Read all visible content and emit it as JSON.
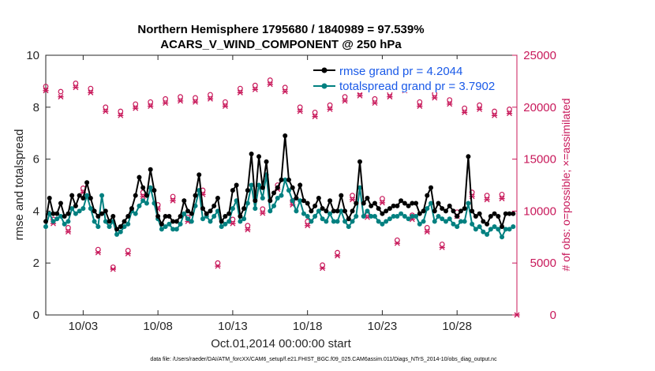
{
  "chart_data": {
    "type": "line",
    "title_line1": "Northern Hemisphere 1795680 / 1840989 = 97.539%",
    "title_line2": "ACARS_V_WIND_COMPONENT @ 250 hPa",
    "xlabel": "Oct.01,2014 00:00:00 start",
    "ylabel": "rmse and totalspread",
    "ylabel_right": "# of obs: o=possible; ×=assimilated",
    "footer": "data file: /Users/raeder/DAI/ATM_forcXX/CAM6_setup/f.e21.FHIST_BGC.f09_025.CAM6assim.011/Diags_NTrS_2014-10/obs_diag_output.nc",
    "x_range": [
      0.5,
      32.0
    ],
    "ylim": [
      0,
      10
    ],
    "ylim_right": [
      0,
      25000
    ],
    "xticks": [
      3,
      8,
      13,
      18,
      23,
      28
    ],
    "xtick_labels": [
      "10/03",
      "10/08",
      "10/13",
      "10/18",
      "10/23",
      "10/28"
    ],
    "yticks": [
      0,
      2,
      4,
      6,
      8,
      10
    ],
    "ytick_labels": [
      "0",
      "2",
      "4",
      "6",
      "8",
      "10"
    ],
    "yticks_right": [
      0,
      5000,
      10000,
      15000,
      20000,
      25000
    ],
    "ytick_labels_right": [
      "0",
      "5000",
      "10000",
      "15000",
      "20000",
      "25000"
    ],
    "legend_location": "top-right",
    "series": [
      {
        "name": "rmse grand pr = 4.2044",
        "color": "#000000",
        "x": [
          0.5,
          0.75,
          1.0,
          1.25,
          1.5,
          1.75,
          2.0,
          2.25,
          2.5,
          2.75,
          3.0,
          3.25,
          3.5,
          3.75,
          4.0,
          4.25,
          4.5,
          4.75,
          5.0,
          5.25,
          5.5,
          5.75,
          6.0,
          6.25,
          6.5,
          6.75,
          7.0,
          7.25,
          7.5,
          7.75,
          8.0,
          8.25,
          8.5,
          8.75,
          9.0,
          9.25,
          9.5,
          9.75,
          10.0,
          10.25,
          10.5,
          10.75,
          11.0,
          11.25,
          11.5,
          11.75,
          12.0,
          12.25,
          12.5,
          12.75,
          13.0,
          13.25,
          13.5,
          13.75,
          14.0,
          14.25,
          14.5,
          14.75,
          15.0,
          15.25,
          15.5,
          15.75,
          16.0,
          16.25,
          16.5,
          16.75,
          17.0,
          17.25,
          17.5,
          17.75,
          18.0,
          18.25,
          18.5,
          18.75,
          19.0,
          19.25,
          19.5,
          19.75,
          20.0,
          20.25,
          20.5,
          20.75,
          21.0,
          21.25,
          21.5,
          21.75,
          22.0,
          22.25,
          22.5,
          22.75,
          23.0,
          23.25,
          23.5,
          23.75,
          24.0,
          24.25,
          24.5,
          24.75,
          25.0,
          25.25,
          25.5,
          25.75,
          26.0,
          26.25,
          26.5,
          26.75,
          27.0,
          27.25,
          27.5,
          27.75,
          28.0,
          28.25,
          28.5,
          28.75,
          29.0,
          29.25,
          29.5,
          29.75,
          30.0,
          30.25,
          30.5,
          30.75,
          31.0,
          31.25,
          31.5,
          31.75
        ],
        "values": [
          3.6,
          4.5,
          3.9,
          3.9,
          4.3,
          3.8,
          3.9,
          4.6,
          4.2,
          4.6,
          4.5,
          5.1,
          4.5,
          4.0,
          3.8,
          3.9,
          4.0,
          3.6,
          3.8,
          3.3,
          3.4,
          3.6,
          3.8,
          4.1,
          4.6,
          5.3,
          4.9,
          4.6,
          5.6,
          4.8,
          3.8,
          3.5,
          3.8,
          3.8,
          3.6,
          3.6,
          3.8,
          4.4,
          4.0,
          3.9,
          4.6,
          5.4,
          4.1,
          3.9,
          4.0,
          4.2,
          4.5,
          3.6,
          3.8,
          3.9,
          4.8,
          5.0,
          3.8,
          4.1,
          4.8,
          6.2,
          4.4,
          6.1,
          4.9,
          5.9,
          4.4,
          4.7,
          4.9,
          5.2,
          6.9,
          5.2,
          4.9,
          4.5,
          5.0,
          4.4,
          4.3,
          4.0,
          4.2,
          4.5,
          4.1,
          4.0,
          4.4,
          4.0,
          4.0,
          4.6,
          4.0,
          3.7,
          4.0,
          4.3,
          5.9,
          4.3,
          4.5,
          4.2,
          4.3,
          4.1,
          3.9,
          4.0,
          4.1,
          4.2,
          4.2,
          4.4,
          4.3,
          4.2,
          4.3,
          4.3,
          3.9,
          4.0,
          4.6,
          4.9,
          4.0,
          4.3,
          4.1,
          4.0,
          4.2,
          4.0,
          3.8,
          4.0,
          4.1,
          6.1,
          4.0,
          3.8,
          3.9,
          3.6,
          3.5,
          3.8,
          3.9,
          3.8,
          3.4,
          3.9,
          3.9,
          3.9
        ]
      },
      {
        "name": "totalspread grand pr = 3.7902",
        "color": "#008080",
        "x": [
          0.5,
          0.75,
          1.0,
          1.25,
          1.5,
          1.75,
          2.0,
          2.25,
          2.5,
          2.75,
          3.0,
          3.25,
          3.5,
          3.75,
          4.0,
          4.25,
          4.5,
          4.75,
          5.0,
          5.25,
          5.5,
          5.75,
          6.0,
          6.25,
          6.5,
          6.75,
          7.0,
          7.25,
          7.5,
          7.75,
          8.0,
          8.25,
          8.5,
          8.75,
          9.0,
          9.25,
          9.5,
          9.75,
          10.0,
          10.25,
          10.5,
          10.75,
          11.0,
          11.25,
          11.5,
          11.75,
          12.0,
          12.25,
          12.5,
          12.75,
          13.0,
          13.25,
          13.5,
          13.75,
          14.0,
          14.25,
          14.5,
          14.75,
          15.0,
          15.25,
          15.5,
          15.75,
          16.0,
          16.25,
          16.5,
          16.75,
          17.0,
          17.25,
          17.5,
          17.75,
          18.0,
          18.25,
          18.5,
          18.75,
          19.0,
          19.25,
          19.5,
          19.75,
          20.0,
          20.25,
          20.5,
          20.75,
          21.0,
          21.25,
          21.5,
          21.75,
          22.0,
          22.25,
          22.5,
          22.75,
          23.0,
          23.25,
          23.5,
          23.75,
          24.0,
          24.25,
          24.5,
          24.75,
          25.0,
          25.25,
          25.5,
          25.75,
          26.0,
          26.25,
          26.5,
          26.75,
          27.0,
          27.25,
          27.5,
          27.75,
          28.0,
          28.25,
          28.5,
          28.75,
          29.0,
          29.25,
          29.5,
          29.75,
          30.0,
          30.25,
          30.5,
          30.75,
          31.0,
          31.25,
          31.5,
          31.75
        ],
        "values": [
          3.4,
          3.9,
          3.6,
          3.7,
          3.8,
          3.5,
          3.6,
          4.1,
          3.9,
          4.0,
          4.1,
          4.6,
          4.1,
          3.6,
          3.4,
          4.6,
          3.6,
          3.4,
          3.6,
          3.1,
          3.2,
          3.4,
          3.5,
          4.0,
          3.9,
          4.2,
          4.4,
          4.3,
          4.9,
          4.3,
          3.7,
          3.3,
          3.4,
          3.5,
          3.3,
          3.3,
          3.5,
          3.9,
          3.7,
          3.6,
          4.2,
          4.8,
          3.7,
          3.8,
          3.6,
          3.8,
          4.0,
          3.4,
          3.5,
          3.6,
          4.1,
          4.4,
          3.6,
          3.7,
          4.3,
          5.0,
          4.1,
          5.0,
          4.5,
          5.4,
          4.0,
          4.2,
          4.5,
          4.6,
          5.2,
          4.8,
          4.4,
          4.0,
          4.4,
          3.9,
          3.8,
          3.6,
          3.8,
          4.0,
          3.7,
          3.6,
          3.9,
          3.6,
          3.6,
          4.0,
          3.6,
          3.4,
          3.6,
          3.8,
          4.9,
          3.8,
          4.0,
          3.8,
          3.8,
          3.6,
          3.5,
          3.6,
          3.7,
          3.8,
          3.8,
          3.9,
          3.8,
          3.7,
          3.8,
          3.8,
          3.5,
          3.6,
          4.1,
          4.3,
          3.6,
          3.8,
          3.7,
          3.6,
          3.7,
          3.5,
          3.4,
          3.6,
          3.6,
          4.3,
          3.5,
          3.3,
          3.4,
          3.2,
          3.1,
          3.3,
          3.4,
          3.3,
          3.0,
          3.3,
          3.3,
          3.4
        ]
      },
      {
        "name": "obs possible",
        "color": "#c8185a",
        "axis": "right",
        "x": [
          0.5,
          1.0,
          1.5,
          2.0,
          2.5,
          3.0,
          3.5,
          4.0,
          4.5,
          5.0,
          5.5,
          6.0,
          6.5,
          7.0,
          7.5,
          8.0,
          8.5,
          9.0,
          9.5,
          10.0,
          10.5,
          11.0,
          11.5,
          12.0,
          12.5,
          13.0,
          13.5,
          14.0,
          14.5,
          15.0,
          15.5,
          16.0,
          16.5,
          17.0,
          17.5,
          18.0,
          18.5,
          19.0,
          19.5,
          20.0,
          20.5,
          21.0,
          21.5,
          22.0,
          22.5,
          23.0,
          23.5,
          24.0,
          24.5,
          25.0,
          25.5,
          26.0,
          26.5,
          27.0,
          27.5,
          28.0,
          28.5,
          29.0,
          29.5,
          30.0,
          30.5,
          31.0,
          31.5
        ],
        "values": [
          22000,
          9200,
          21500,
          8400,
          22300,
          12200,
          21800,
          6300,
          20000,
          4600,
          19600,
          6200,
          20300,
          11800,
          20500,
          10600,
          20800,
          11400,
          21000,
          9400,
          20900,
          12000,
          21200,
          5000,
          20500,
          9200,
          21800,
          8600,
          22100,
          10200,
          22600,
          12500,
          21900,
          11000,
          20000,
          9000,
          19500,
          4800,
          20200,
          6000,
          21000,
          11500,
          21500,
          9800,
          20800,
          11200,
          21400,
          7200,
          22000,
          9600,
          20500,
          8400,
          21300,
          6800,
          20700,
          9900,
          19900,
          11800,
          20200,
          11500,
          19600,
          11600,
          19800
        ]
      },
      {
        "name": "obs assimilated",
        "color": "#c8185a",
        "axis": "right",
        "x": [
          0.5,
          1.0,
          1.5,
          2.0,
          2.5,
          3.0,
          3.5,
          4.0,
          4.5,
          5.0,
          5.5,
          6.0,
          6.5,
          7.0,
          7.5,
          8.0,
          8.5,
          9.0,
          9.5,
          10.0,
          10.5,
          11.0,
          11.5,
          12.0,
          12.5,
          13.0,
          13.5,
          14.0,
          14.5,
          15.0,
          15.5,
          16.0,
          16.5,
          17.0,
          17.5,
          18.0,
          18.5,
          19.0,
          19.5,
          20.0,
          20.5,
          21.0,
          21.5,
          22.0,
          22.5,
          23.0,
          23.5,
          24.0,
          24.5,
          25.0,
          25.5,
          26.0,
          26.5,
          27.0,
          27.5,
          28.0,
          28.5,
          29.0,
          29.5,
          30.0,
          30.5,
          31.0,
          31.5,
          32.0
        ],
        "values": [
          21600,
          8800,
          21000,
          8000,
          21900,
          11800,
          21400,
          6000,
          19600,
          4400,
          19200,
          5900,
          19900,
          11400,
          20100,
          10200,
          20400,
          11000,
          20600,
          9000,
          20500,
          11600,
          20800,
          4700,
          20100,
          8800,
          21400,
          8200,
          21700,
          9800,
          22200,
          12100,
          21500,
          10600,
          19600,
          8600,
          19100,
          4500,
          19800,
          5700,
          20600,
          11100,
          21100,
          9400,
          20400,
          10800,
          21000,
          6900,
          21600,
          9200,
          20100,
          8000,
          20900,
          6500,
          20300,
          9500,
          19500,
          11400,
          19800,
          11100,
          19200,
          11200,
          19400,
          0
        ]
      }
    ]
  }
}
